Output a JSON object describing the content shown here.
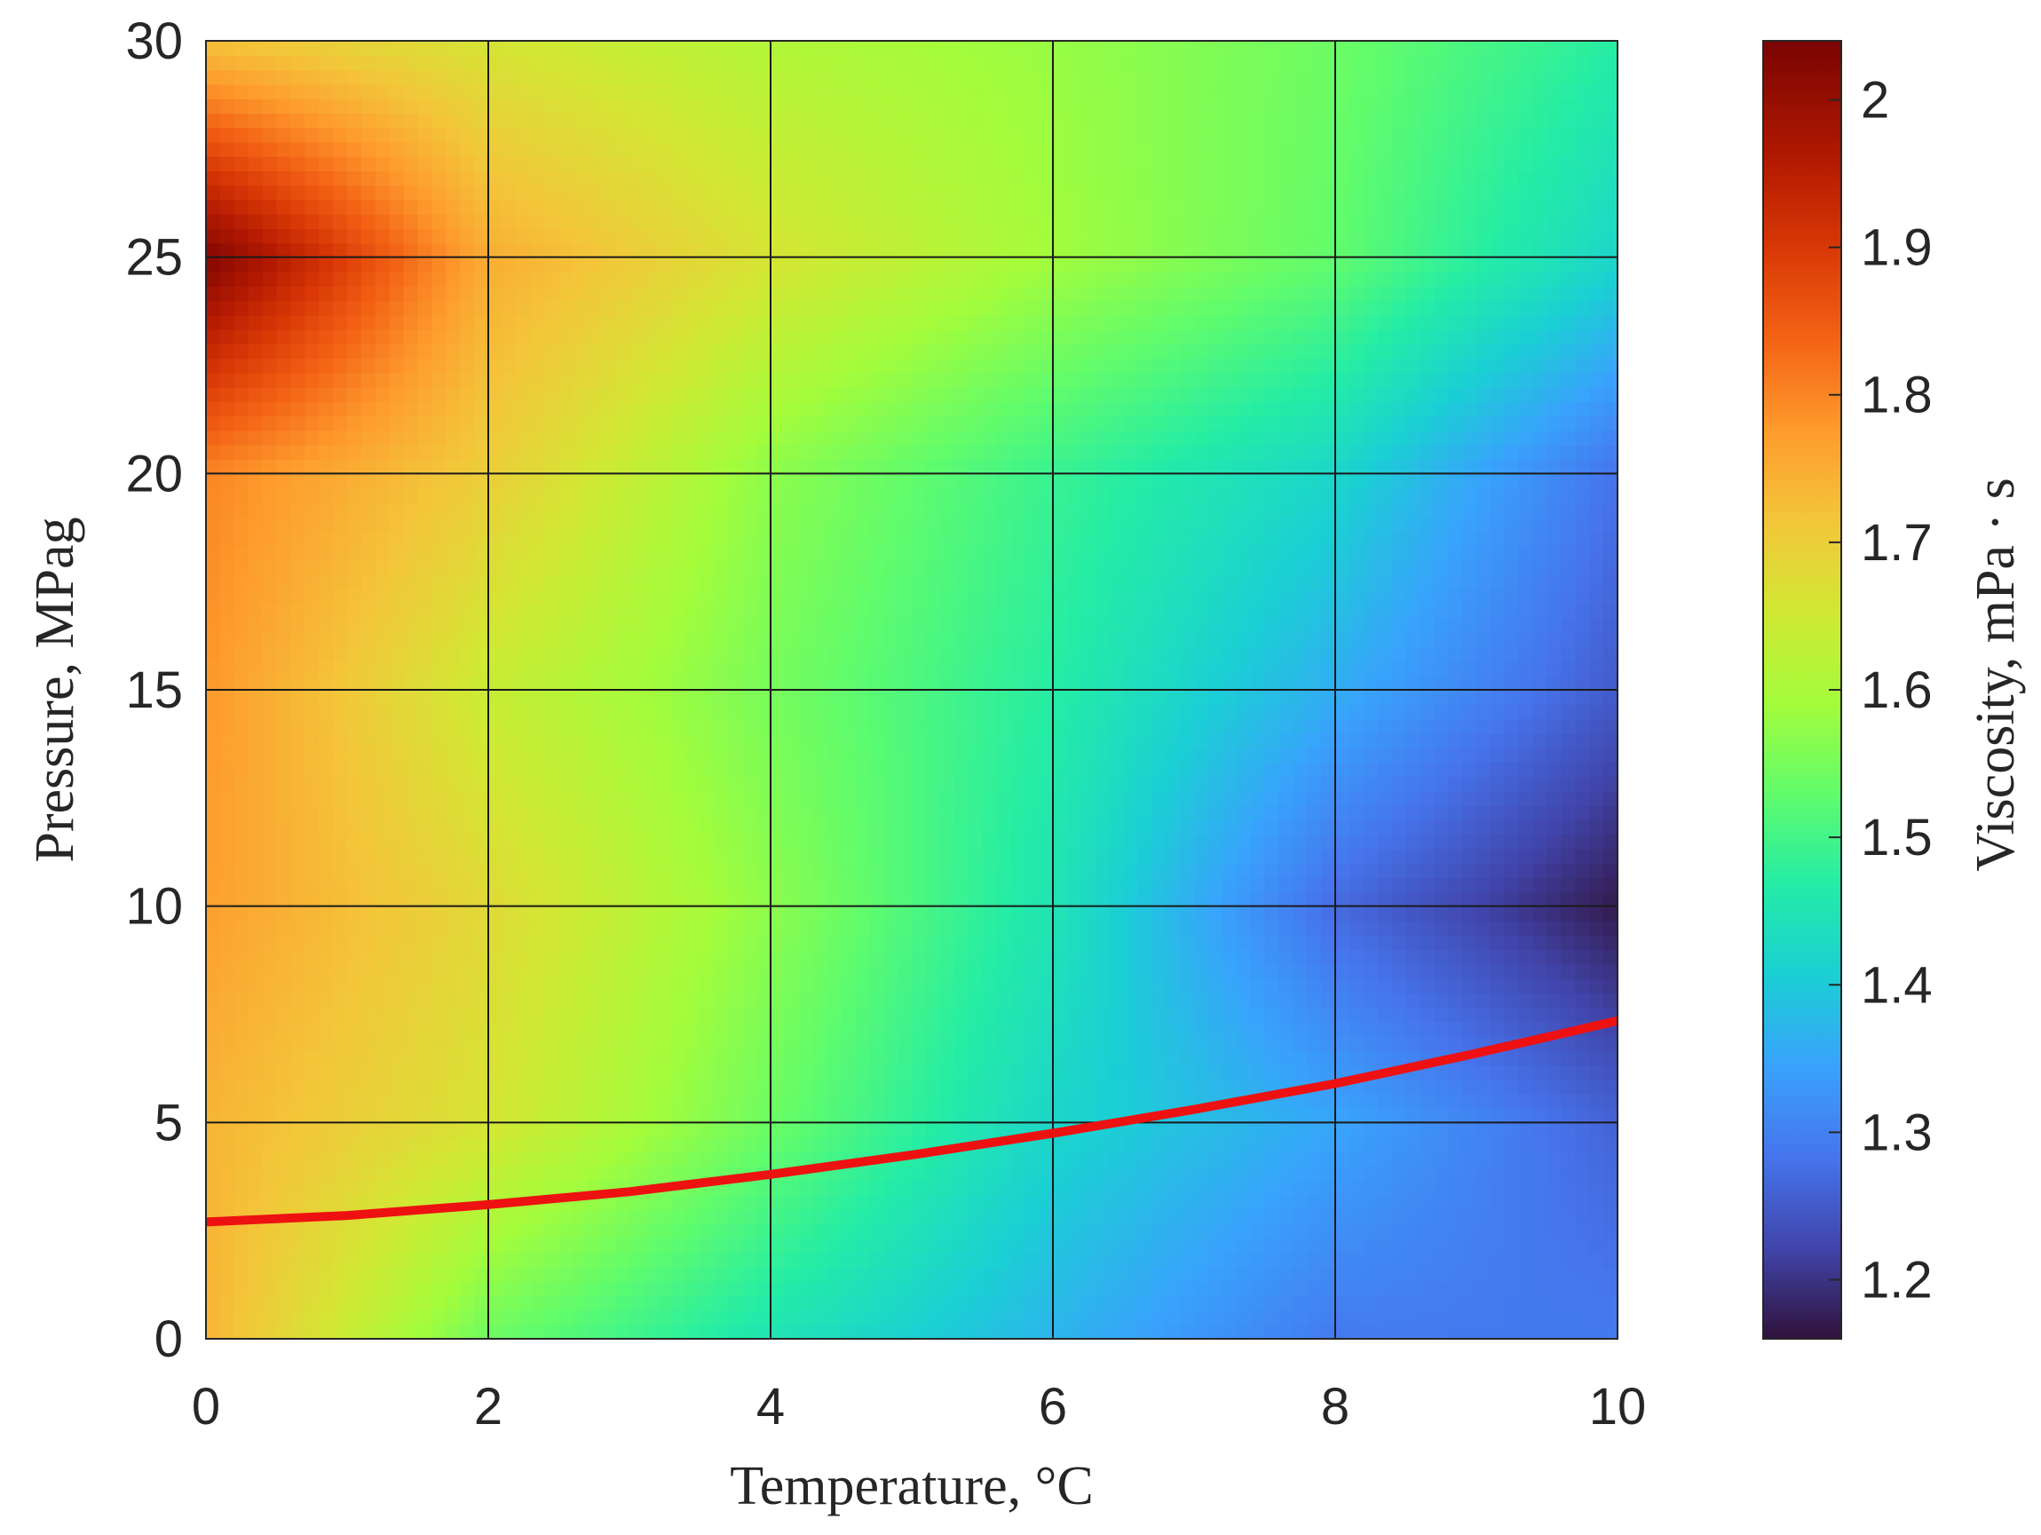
{
  "chart_data": {
    "type": "heatmap",
    "xlabel": "Temperature, °C",
    "ylabel": "Pressure, MPag",
    "colorbar_label": "Viscosity, mPa · s",
    "xlim": [
      0,
      10
    ],
    "ylim": [
      0,
      30
    ],
    "color_range": [
      1.16,
      2.04
    ],
    "colormap": "turbo",
    "x_ticks": [
      "0",
      "2",
      "4",
      "6",
      "8",
      "10"
    ],
    "y_ticks": [
      "0",
      "5",
      "10",
      "15",
      "20",
      "25",
      "30"
    ],
    "colorbar_ticks": [
      "1.2",
      "1.3",
      "1.4",
      "1.5",
      "1.6",
      "1.7",
      "1.8",
      "1.9",
      "2"
    ],
    "grid": true,
    "x": [
      0,
      2,
      4,
      6,
      8,
      10
    ],
    "y": [
      0,
      5,
      10,
      15,
      20,
      25,
      30
    ],
    "z": [
      [
        1.74,
        1.54,
        1.45,
        1.37,
        1.29,
        1.29
      ],
      [
        1.74,
        1.66,
        1.54,
        1.42,
        1.35,
        1.26
      ],
      [
        1.77,
        1.68,
        1.57,
        1.45,
        1.27,
        1.17
      ],
      [
        1.78,
        1.64,
        1.55,
        1.47,
        1.36,
        1.25
      ],
      [
        1.8,
        1.7,
        1.57,
        1.49,
        1.42,
        1.28
      ],
      [
        2.03,
        1.75,
        1.66,
        1.59,
        1.53,
        1.42
      ],
      [
        1.72,
        1.66,
        1.61,
        1.58,
        1.54,
        1.47
      ]
    ],
    "series": [
      {
        "type": "line",
        "color": "#ee1111",
        "x": [
          0,
          1,
          2,
          3,
          4,
          5,
          6,
          7,
          8,
          9,
          10
        ],
        "y": [
          2.7,
          2.85,
          3.1,
          3.4,
          3.8,
          4.25,
          4.75,
          5.3,
          5.9,
          6.6,
          7.35
        ]
      }
    ]
  }
}
